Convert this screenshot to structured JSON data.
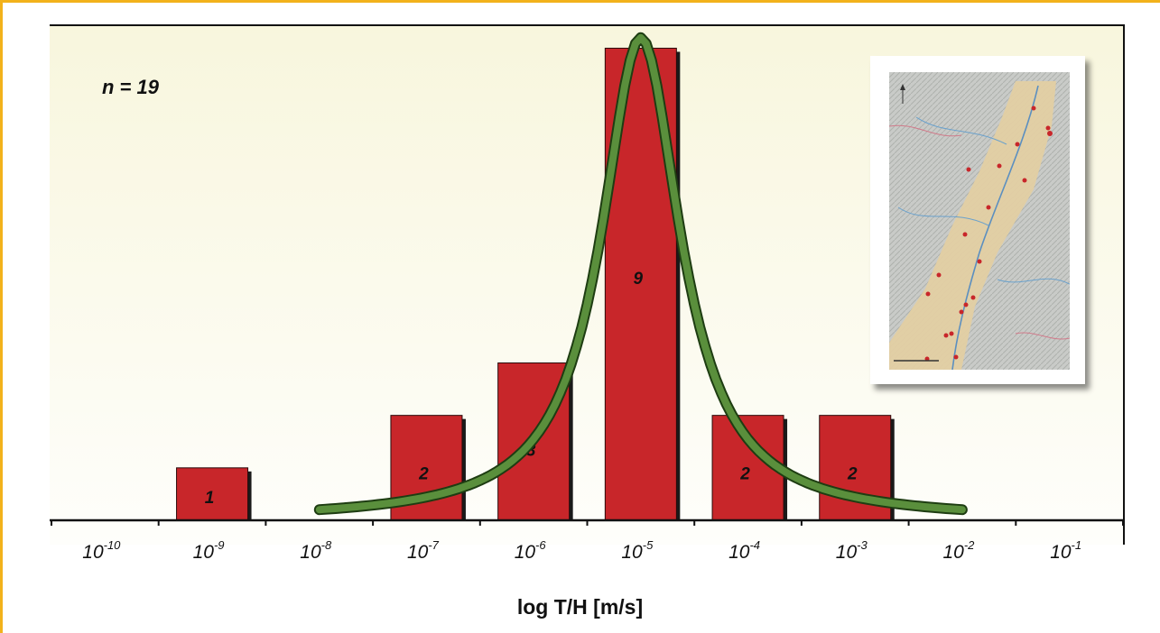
{
  "annotation": {
    "n_label": "n = 19"
  },
  "chart_data": {
    "type": "bar",
    "title": "",
    "xlabel": "log T/H [m/s]",
    "ylabel": "",
    "x_scale": "log",
    "ylim": [
      0,
      9.3
    ],
    "categories": [
      "10^-10",
      "10^-9",
      "10^-8",
      "10^-7",
      "10^-6",
      "10^-5",
      "10^-4",
      "10^-3",
      "10^-2",
      "10^-1"
    ],
    "tick_labels": [
      {
        "base": "10",
        "exp": "-10"
      },
      {
        "base": "10",
        "exp": "-9"
      },
      {
        "base": "10",
        "exp": "-8"
      },
      {
        "base": "10",
        "exp": "-7"
      },
      {
        "base": "10",
        "exp": "-6"
      },
      {
        "base": "10",
        "exp": "-5"
      },
      {
        "base": "10",
        "exp": "-4"
      },
      {
        "base": "10",
        "exp": "-3"
      },
      {
        "base": "10",
        "exp": "-2"
      },
      {
        "base": "10",
        "exp": "-1"
      }
    ],
    "values": [
      0,
      1,
      0,
      2,
      3,
      9,
      2,
      2,
      0,
      0
    ],
    "data_labels": [
      "",
      "1",
      "",
      "2",
      "3",
      "9",
      "2",
      "2",
      "",
      ""
    ],
    "fitted_curve": {
      "type": "lorentzian",
      "center_log10": -5,
      "peak": 9.2,
      "half_width_decades": 0.9,
      "x_range_log10": [
        -8,
        -2
      ]
    },
    "colors": {
      "bar": "#c8262a",
      "bar_shadow": "#1a1a1a",
      "curve": "#5a8f3c",
      "curve_outline": "#1e3d12"
    },
    "grid": false,
    "legend": "none"
  },
  "inset": {
    "name": "study-area-map",
    "markers": 19
  }
}
